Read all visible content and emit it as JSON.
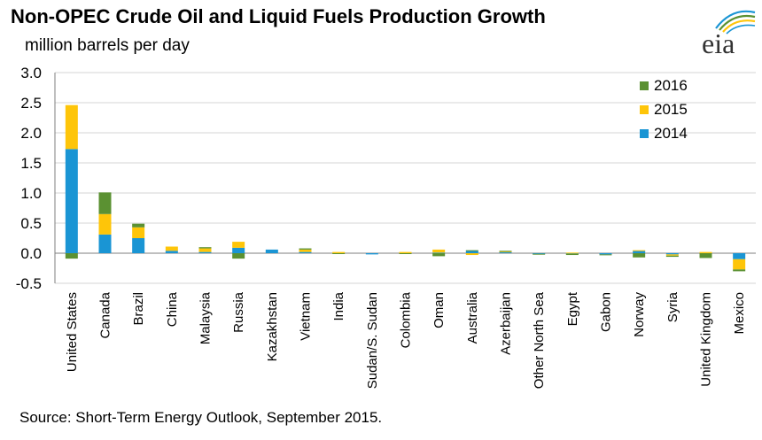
{
  "header": {
    "title": "Non-OPEC Crude Oil and Liquid Fuels Production Growth",
    "subtitle": "million barrels per day",
    "logo_text": "eia"
  },
  "footer": {
    "source": "Source: Short-Term Energy Outlook, September 2015."
  },
  "colors": {
    "2014": "#1a95d4",
    "2015": "#fec509",
    "2016": "#5b9132",
    "grid": "#d4d4d4",
    "axis": "#7f7f7f"
  },
  "chart_data": {
    "type": "bar",
    "stacked": true,
    "title": "Non-OPEC Crude Oil and Liquid Fuels Production Growth",
    "ylabel": "million barrels per day",
    "ylim": [
      -0.5,
      3.0
    ],
    "yticks": [
      "3.0",
      "2.5",
      "2.0",
      "1.5",
      "1.0",
      "0.5",
      "0.0",
      "-0.5"
    ],
    "ytick_values": [
      3.0,
      2.5,
      2.0,
      1.5,
      1.0,
      0.5,
      0.0,
      -0.5
    ],
    "grid": true,
    "legend_position": "top-right",
    "legend_order": [
      "2016",
      "2015",
      "2014"
    ],
    "categories": [
      "United States",
      "Canada",
      "Brazil",
      "China",
      "Malaysia",
      "Russia",
      "Kazakhstan",
      "Vietnam",
      "India",
      "Sudan/S. Sudan",
      "Colombia",
      "Oman",
      "Australia",
      "Azerbaijan",
      "Other North Sea",
      "Egypt",
      "Gabon",
      "Norway",
      "Syria",
      "United Kingdom",
      "Mexico"
    ],
    "series": [
      {
        "name": "2014",
        "values": [
          1.73,
          0.31,
          0.25,
          0.04,
          0.02,
          0.09,
          0.06,
          0.02,
          0.0,
          -0.02,
          0.0,
          0.01,
          0.04,
          0.02,
          -0.01,
          -0.01,
          -0.02,
          0.04,
          -0.02,
          0.0,
          -0.1
        ]
      },
      {
        "name": "2015",
        "values": [
          0.73,
          0.34,
          0.18,
          0.07,
          0.06,
          0.1,
          0.0,
          0.04,
          0.02,
          0.0,
          0.02,
          0.05,
          -0.03,
          0.01,
          0.0,
          0.01,
          0.0,
          0.01,
          -0.02,
          0.02,
          -0.17
        ]
      },
      {
        "name": "2016",
        "values": [
          -0.09,
          0.36,
          0.06,
          0.0,
          0.02,
          -0.09,
          0.0,
          0.02,
          -0.01,
          0.0,
          -0.01,
          -0.05,
          0.01,
          0.01,
          -0.01,
          -0.02,
          -0.01,
          -0.07,
          -0.02,
          -0.08,
          -0.03
        ]
      }
    ]
  }
}
